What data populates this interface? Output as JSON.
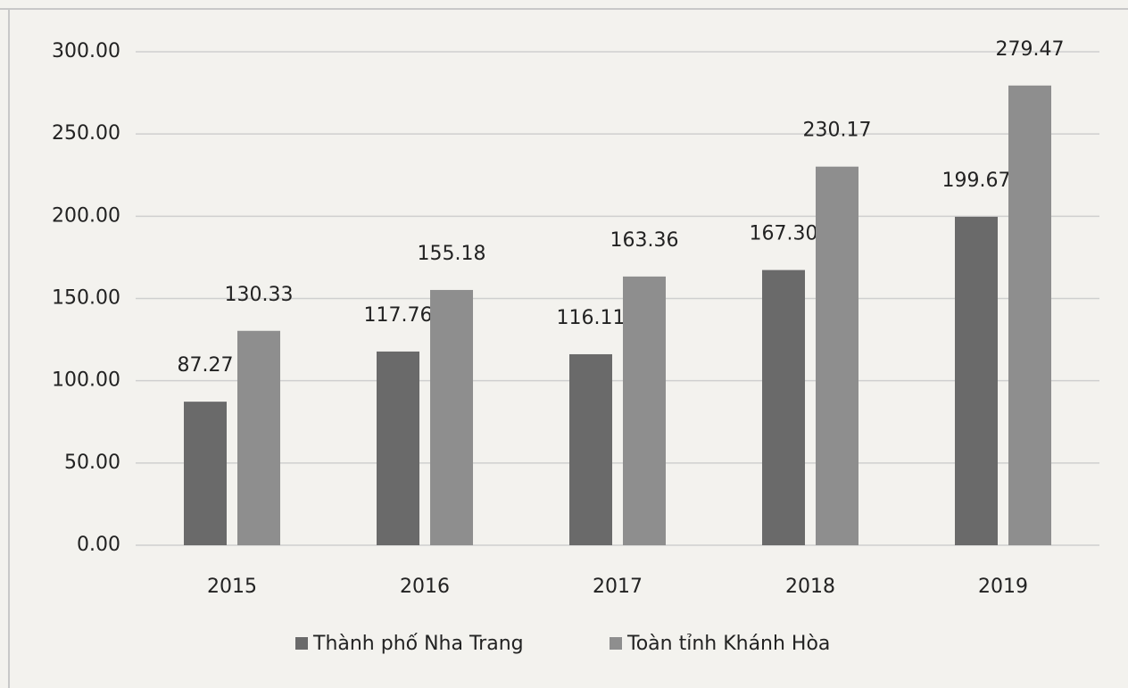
{
  "chart_data": {
    "type": "bar",
    "categories": [
      "2015",
      "2016",
      "2017",
      "2018",
      "2019"
    ],
    "series": [
      {
        "name": "Thành phố Nha Trang",
        "color": "#6a6a6a",
        "values": [
          87.27,
          117.76,
          116.11,
          167.3,
          199.67
        ],
        "value_labels": [
          "87.27",
          "117.76",
          "116.11",
          "167.30",
          "199.67"
        ]
      },
      {
        "name": "Toàn tỉnh Khánh Hòa",
        "color": "#8e8e8e",
        "values": [
          130.33,
          155.18,
          163.36,
          230.17,
          279.47
        ],
        "value_labels": [
          "130.33",
          "155.18",
          "163.36",
          "230.17",
          "279.47"
        ]
      }
    ],
    "ylim": [
      0,
      300
    ],
    "yticks": [
      {
        "value": 0,
        "label": "0.00"
      },
      {
        "value": 50,
        "label": "50.00"
      },
      {
        "value": 100,
        "label": "100.00"
      },
      {
        "value": 150,
        "label": "150.00"
      },
      {
        "value": 200,
        "label": "200.00"
      },
      {
        "value": 250,
        "label": "250.00"
      },
      {
        "value": 300,
        "label": "300.00"
      }
    ],
    "grid": true,
    "legend": "bottom"
  }
}
